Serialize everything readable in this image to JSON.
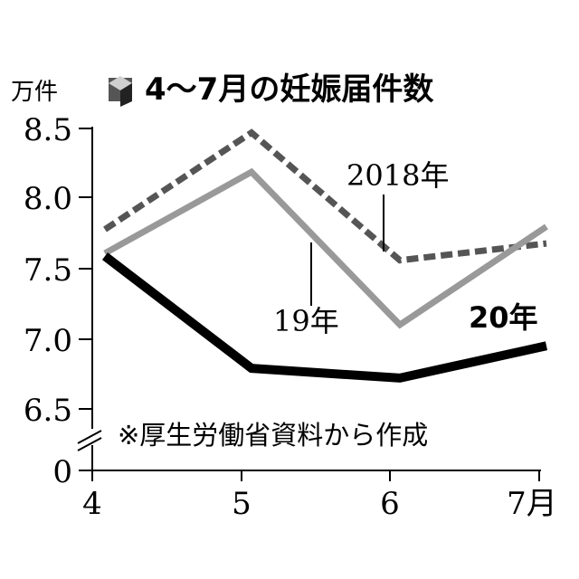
{
  "chart_data": {
    "type": "line",
    "title": "4〜7月の妊娠届件数",
    "unit_label": "万件",
    "source_note": "※厚生労働省資料から作成",
    "x_categories": [
      "4",
      "5",
      "6",
      "7月"
    ],
    "y_ticks": [
      "8.5",
      "8.0",
      "7.5",
      "7.0",
      "6.5",
      "0"
    ],
    "ylim": [
      6.5,
      8.5
    ],
    "axis_break": true,
    "grid": false,
    "series": [
      {
        "name": "2018年",
        "values": [
          7.78,
          8.47,
          7.56,
          7.68
        ],
        "color": "#555555",
        "style": "dashed"
      },
      {
        "name": "19年",
        "values": [
          7.61,
          8.19,
          7.1,
          7.8
        ],
        "color": "#999999",
        "style": "solid"
      },
      {
        "name": "20年",
        "values": [
          7.59,
          6.79,
          6.72,
          6.95
        ],
        "color": "#000000",
        "style": "bold"
      }
    ]
  }
}
